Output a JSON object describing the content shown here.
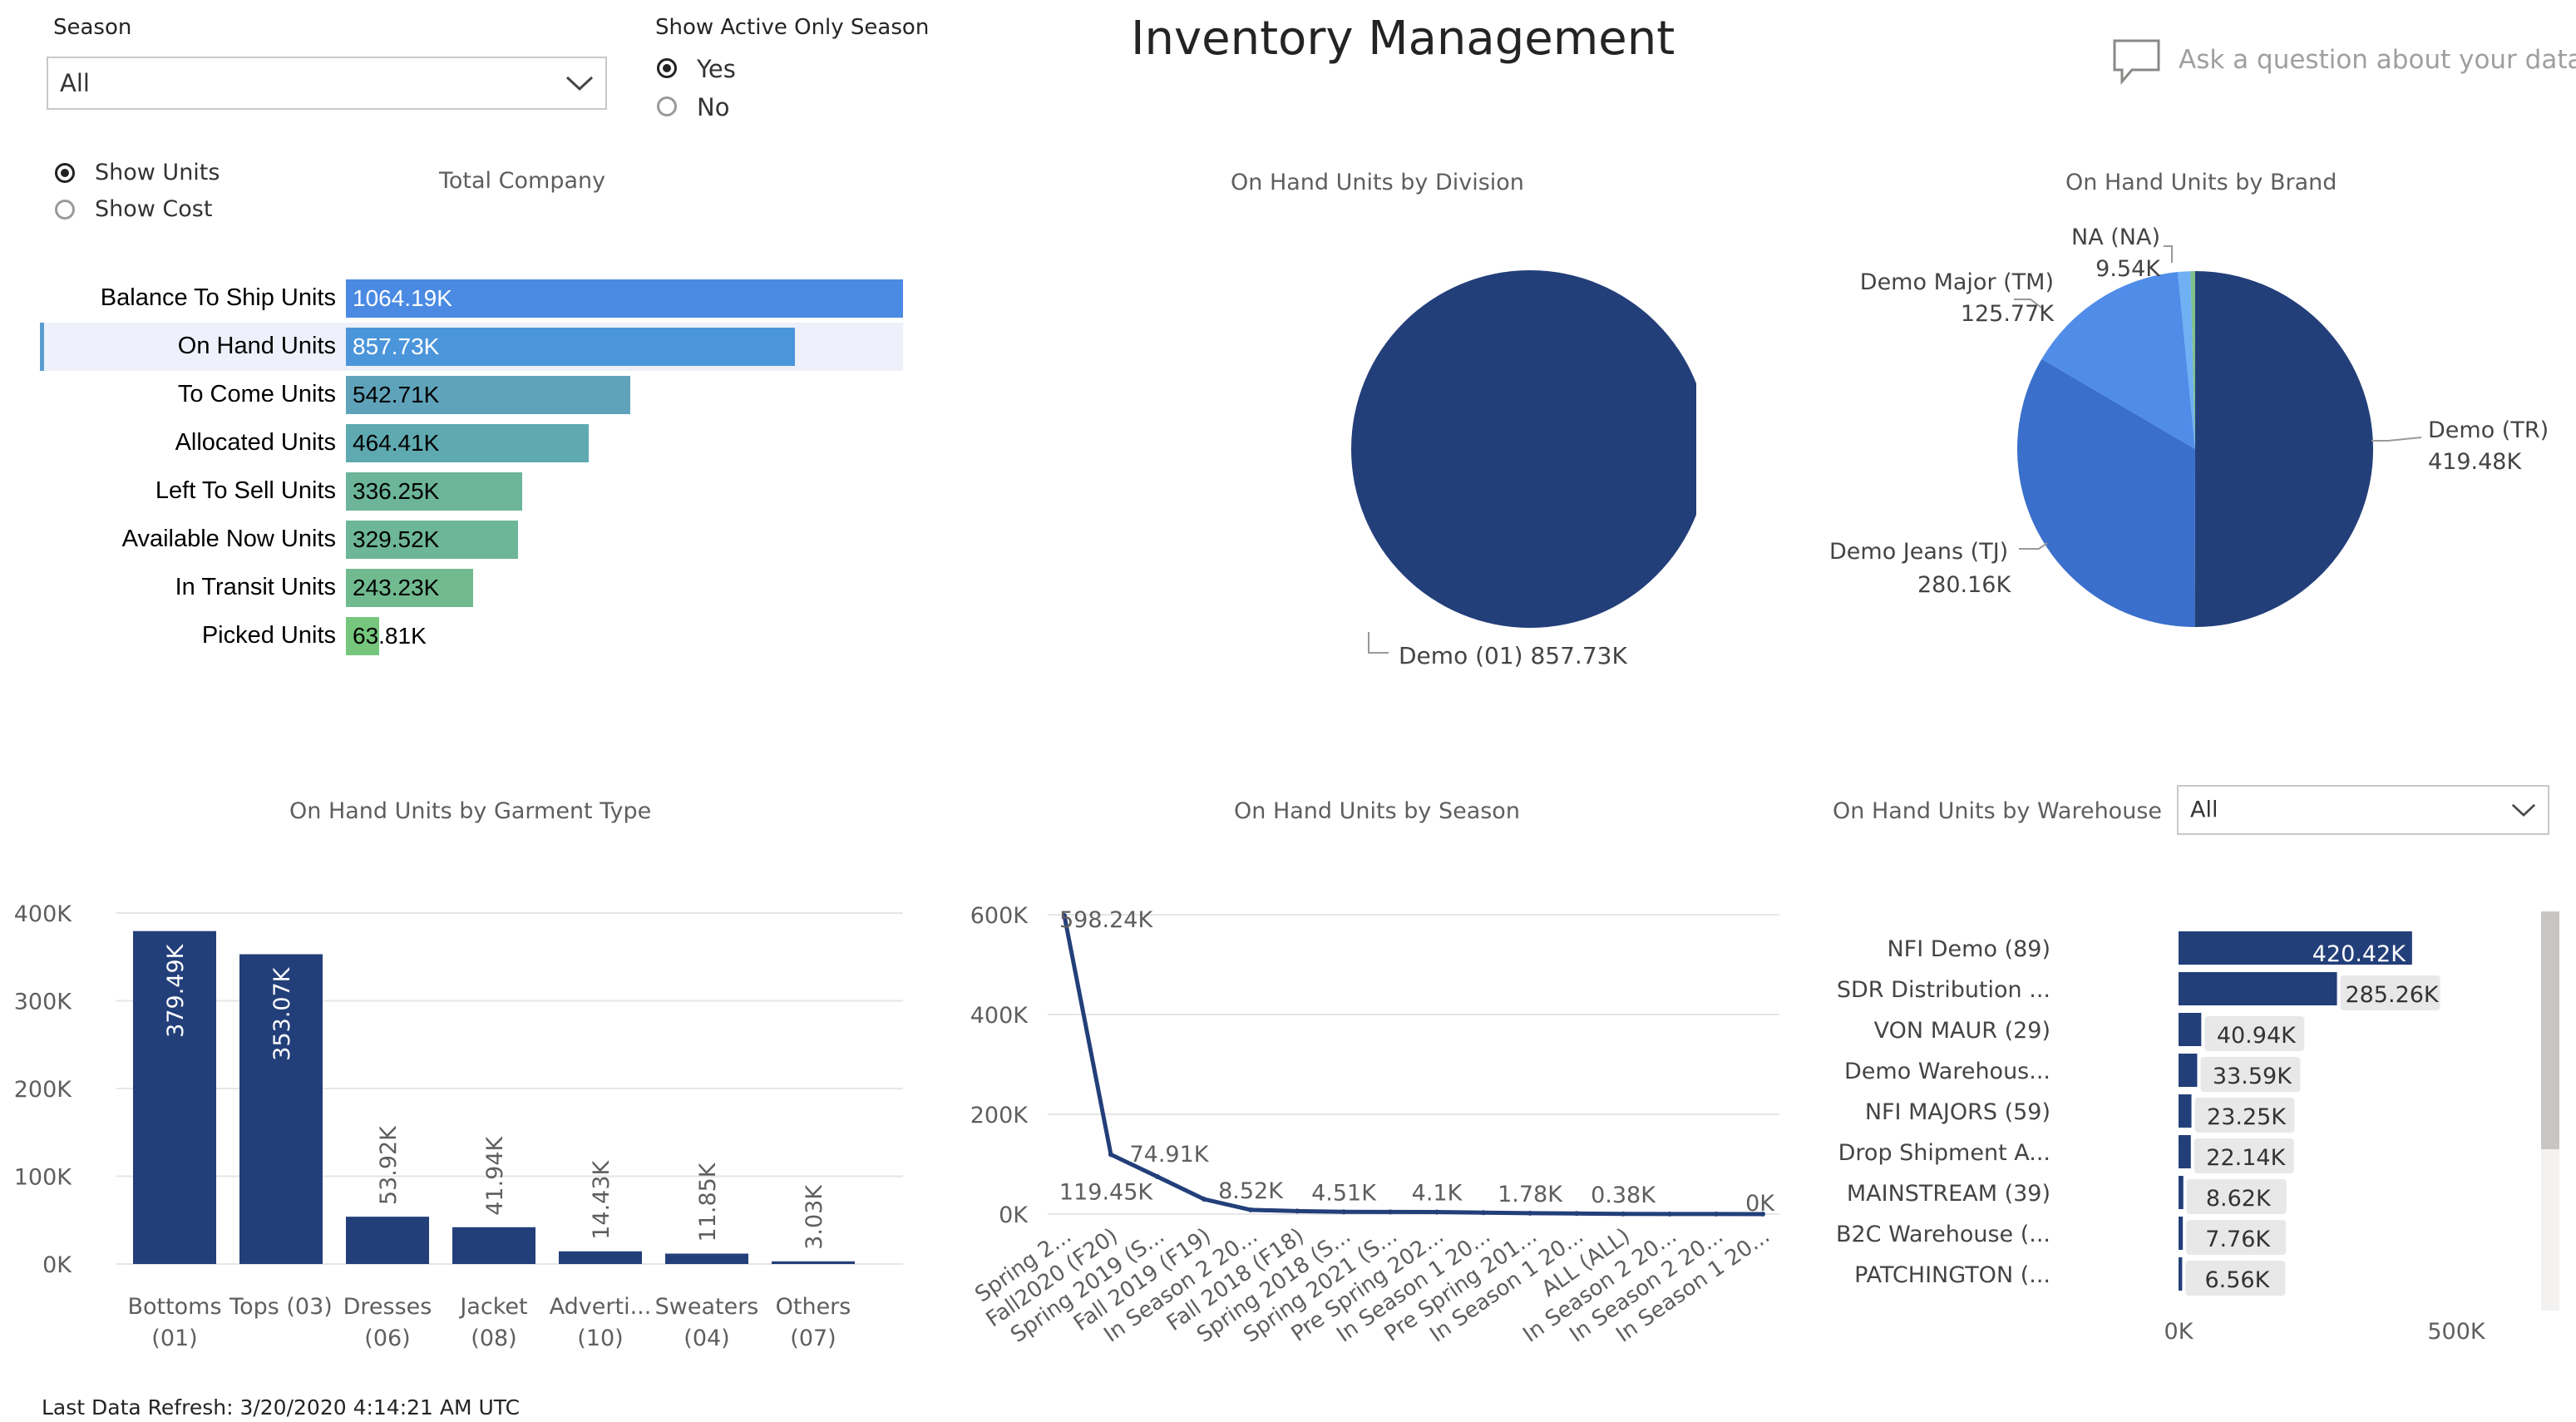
{
  "header": {
    "title": "Inventory Management",
    "qa_placeholder": "Ask a question about your data",
    "last_refresh": "Last Data Refresh: 3/20/2020 4:14:21 AM UTC"
  },
  "filters": {
    "season_label": "Season",
    "season_value": "All",
    "active_label": "Show Active Only Season",
    "active_options": [
      "Yes",
      "No"
    ],
    "active_selected": "Yes",
    "measure_options": [
      "Show Units",
      "Show Cost"
    ],
    "measure_selected": "Show Units",
    "warehouse_value": "All"
  },
  "colors": {
    "navy": "#233f7a",
    "accent_blue": "#4f8de9"
  },
  "total_company": {
    "title": "Total Company",
    "rows": [
      {
        "label": "Balance To Ship Units",
        "value": 1064.19,
        "display": "1064.19K",
        "color": "#4a8ae3",
        "text_color": "#ffffff"
      },
      {
        "label": "On Hand Units",
        "value": 857.73,
        "display": "857.73K",
        "color": "#4b95db",
        "text_color": "#ffffff"
      },
      {
        "label": "To Come Units",
        "value": 542.71,
        "display": "542.71K",
        "color": "#5fa3ba",
        "text_color": "#000000"
      },
      {
        "label": "Allocated Units",
        "value": 464.41,
        "display": "464.41K",
        "color": "#5fa9b0",
        "text_color": "#000000"
      },
      {
        "label": "Left To Sell Units",
        "value": 336.25,
        "display": "336.25K",
        "color": "#6cb59a",
        "text_color": "#000000"
      },
      {
        "label": "Available Now Units",
        "value": 329.52,
        "display": "329.52K",
        "color": "#6db697",
        "text_color": "#000000"
      },
      {
        "label": "In Transit Units",
        "value": 243.23,
        "display": "243.23K",
        "color": "#71ba90",
        "text_color": "#000000"
      },
      {
        "label": "Picked Units",
        "value": 63.81,
        "display": "63.81K",
        "color": "#76c67d",
        "text_color": "#000000"
      }
    ]
  },
  "chart_data": [
    {
      "type": "pie",
      "title": "On Hand Units by Division",
      "slices": [
        {
          "label": "Demo (01) 857.73K",
          "value": 857.73,
          "color": "#233f7a"
        }
      ]
    },
    {
      "type": "pie",
      "title": "On Hand Units by Brand",
      "slices": [
        {
          "name": "Demo (TR)",
          "value_label": "419.48K",
          "value": 419.48,
          "color": "#233f7a"
        },
        {
          "name": "Demo Jeans (TJ)",
          "value_label": "280.16K",
          "value": 280.16,
          "color": "#3a6fcb"
        },
        {
          "name": "Demo Major (TM)",
          "value_label": "125.77K",
          "value": 125.77,
          "color": "#4f8de9"
        },
        {
          "name": "NA (NA)",
          "value_label": "9.54K",
          "value": 9.54,
          "color": "#6fb1f2"
        },
        {
          "name": "",
          "value_label": "",
          "value": 3.5,
          "color": "#7fbf8e"
        }
      ]
    },
    {
      "type": "bar",
      "title": "On Hand Units by Garment Type",
      "categories": [
        [
          "Bottoms",
          "(01)"
        ],
        [
          "Tops (03)",
          ""
        ],
        [
          "Dresses",
          "(06)"
        ],
        [
          "Jacket",
          "(08)"
        ],
        [
          "Adverti...",
          "(10)"
        ],
        [
          "Sweaters",
          "(04)"
        ],
        [
          "Others",
          "(07)"
        ]
      ],
      "values": [
        379.49,
        353.07,
        53.92,
        41.94,
        14.43,
        11.85,
        3.03
      ],
      "value_labels": [
        "379.49K",
        "353.07K",
        "53.92K",
        "41.94K",
        "14.43K",
        "11.85K",
        "3.03K"
      ],
      "yticks": [
        "0K",
        "100K",
        "200K",
        "300K",
        "400K"
      ],
      "ylim": [
        0,
        400
      ],
      "grid": true
    },
    {
      "type": "line",
      "title": "On Hand Units by Season",
      "categories": [
        "Spring 2...",
        "Fall2020 (F20)",
        "Spring 2019 (S...",
        "Fall 2019 (F19)",
        "In Season 2 20...",
        "Fall 2018 (F18)",
        "Spring 2018 (S...",
        "Spring 2021 (S...",
        "Pre Spring 202...",
        "In Season 1 20...",
        "Pre Spring 201...",
        "In Season 1 20...",
        "ALL (ALL)",
        "In Season 2 20...",
        "In Season 2 20...",
        "In Season 1 20..."
      ],
      "values": [
        598.24,
        119.45,
        74.91,
        30,
        8.52,
        6,
        4.51,
        4.3,
        4.1,
        3,
        1.78,
        1.2,
        0.38,
        0.3,
        0.2,
        0.1
      ],
      "point_labels": [
        {
          "index": 0,
          "text": "598.24K"
        },
        {
          "index": 1,
          "text": "119.45K"
        },
        {
          "index": 2,
          "text": "74.91K"
        },
        {
          "index": 4,
          "text": "8.52K"
        },
        {
          "index": 6,
          "text": "4.51K"
        },
        {
          "index": 8,
          "text": "4.1K"
        },
        {
          "index": 10,
          "text": "1.78K"
        },
        {
          "index": 12,
          "text": "0.38K"
        },
        {
          "index": 15,
          "text": "0K"
        }
      ],
      "yticks": [
        "0K",
        "200K",
        "400K",
        "600K"
      ],
      "ylim": [
        0,
        600
      ],
      "grid": true,
      "color": "#233f7a"
    },
    {
      "type": "bar",
      "orientation": "horizontal",
      "title": "On Hand Units by Warehouse",
      "categories": [
        "NFI Demo (89)",
        "SDR Distribution ...",
        "VON MAUR (29)",
        "Demo Warehous...",
        "NFI MAJORS (59)",
        "Drop Shipment A...",
        "MAINSTREAM (39)",
        "B2C Warehouse (...",
        "PATCHINGTON (..."
      ],
      "values": [
        420.42,
        285.26,
        40.94,
        33.59,
        23.25,
        22.14,
        8.62,
        7.76,
        6.56
      ],
      "value_labels": [
        "420.42K",
        "285.26K",
        "40.94K",
        "33.59K",
        "23.25K",
        "22.14K",
        "8.62K",
        "7.76K",
        "6.56K"
      ],
      "xticks": [
        "0K",
        "500K"
      ],
      "xlim": [
        0,
        500
      ],
      "color": "#233f7a"
    }
  ]
}
